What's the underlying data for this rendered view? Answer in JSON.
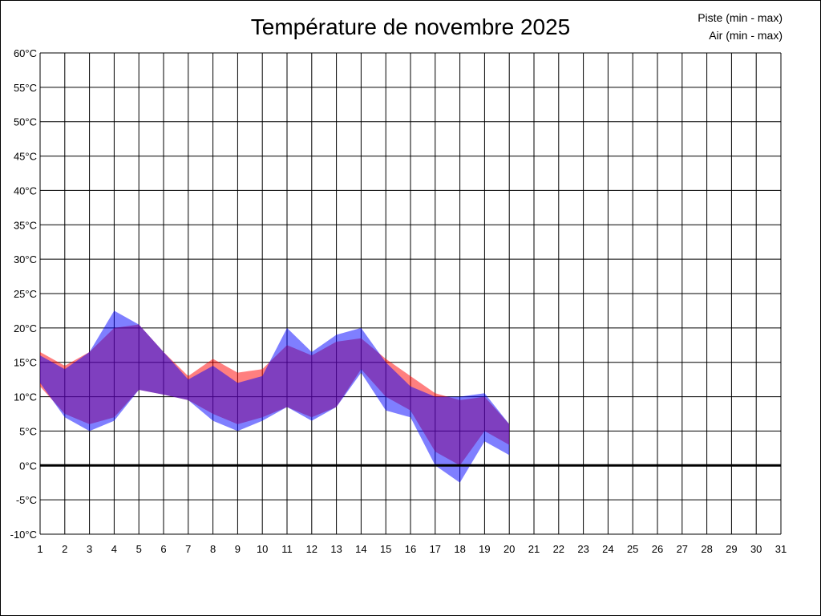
{
  "chart_data": {
    "type": "area",
    "title": "Température de novembre 2025",
    "x": [
      1,
      2,
      3,
      4,
      5,
      6,
      7,
      8,
      9,
      10,
      11,
      12,
      13,
      14,
      15,
      16,
      17,
      18,
      19,
      20
    ],
    "x_ticks": [
      "1",
      "2",
      "3",
      "4",
      "5",
      "6",
      "7",
      "8",
      "9",
      "10",
      "11",
      "12",
      "13",
      "14",
      "15",
      "16",
      "17",
      "18",
      "19",
      "20",
      "21",
      "22",
      "23",
      "24",
      "25",
      "26",
      "27",
      "28",
      "29",
      "30",
      "31"
    ],
    "y_ticks": [
      "-10°C",
      "-5°C",
      "0°C",
      "5°C",
      "10°C",
      "15°C",
      "20°C",
      "25°C",
      "30°C",
      "35°C",
      "40°C",
      "45°C",
      "50°C",
      "55°C",
      "60°C"
    ],
    "xlim": [
      1,
      31
    ],
    "ylim": [
      -10,
      60
    ],
    "grid": true,
    "legend_position": "top-right",
    "series": [
      {
        "name": "Piste (min - max)",
        "color": "#ff0000",
        "min": [
          11.5,
          7.5,
          6.0,
          7.0,
          11.0,
          10.3,
          9.5,
          7.5,
          6.0,
          7.0,
          8.5,
          7.0,
          8.5,
          14.0,
          10.0,
          8.0,
          2.0,
          0.0,
          5.0,
          3.0
        ],
        "max": [
          16.5,
          14.5,
          16.5,
          20.0,
          20.5,
          16.5,
          13.0,
          15.5,
          13.5,
          14.0,
          17.5,
          16.0,
          18.0,
          18.5,
          15.5,
          13.0,
          10.5,
          9.5,
          10.0,
          6.0
        ]
      },
      {
        "name": "Air (min - max)",
        "color": "#0000ff",
        "min": [
          12.0,
          7.0,
          5.0,
          6.5,
          11.0,
          10.3,
          9.5,
          6.5,
          5.0,
          6.5,
          8.5,
          6.5,
          8.5,
          13.5,
          8.0,
          7.0,
          0.0,
          -2.5,
          3.5,
          1.5
        ],
        "max": [
          16.0,
          14.0,
          16.5,
          22.5,
          20.5,
          16.5,
          12.5,
          14.5,
          12.0,
          13.0,
          20.0,
          16.5,
          19.0,
          20.0,
          15.0,
          11.5,
          10.0,
          10.0,
          10.5,
          6.0
        ]
      }
    ]
  }
}
